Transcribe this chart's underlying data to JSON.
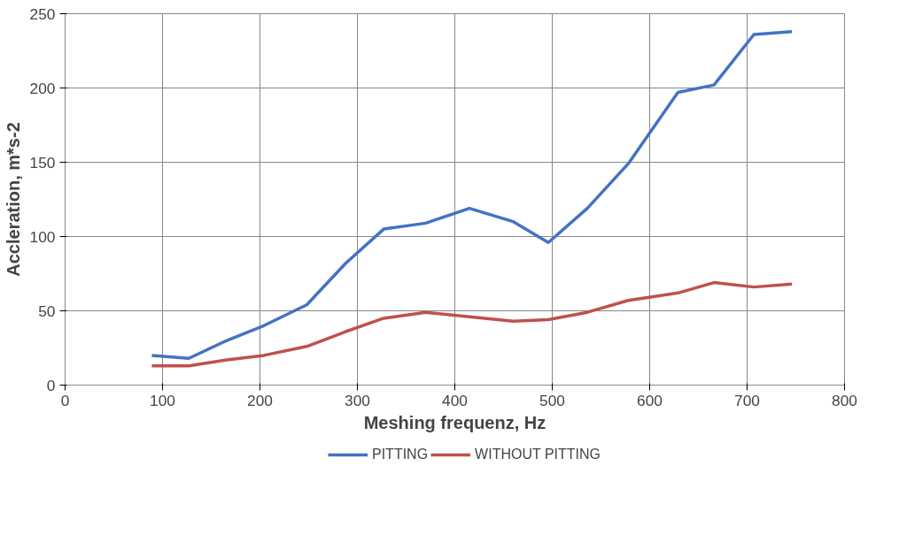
{
  "chart_data": {
    "type": "line",
    "xlabel": "Meshing frequenz, Hz",
    "ylabel": "Accleration, m*s-2",
    "x": [
      89,
      127,
      166,
      204,
      248,
      288,
      327,
      370,
      415,
      460,
      496,
      536,
      578,
      629,
      666,
      707,
      746
    ],
    "series": [
      {
        "name": "PITTING",
        "color": "#4472c4",
        "values": [
          20,
          18,
          30,
          40,
          54,
          82,
          105,
          109,
          119,
          110,
          96,
          119,
          149,
          197,
          202,
          236,
          238
        ]
      },
      {
        "name": "WITHOUT PITTING",
        "color": "#c0504d",
        "values": [
          13,
          13,
          17,
          20,
          26,
          36,
          45,
          49,
          46,
          43,
          44,
          49,
          57,
          62,
          69,
          66,
          68
        ]
      }
    ],
    "xlim": [
      0,
      800
    ],
    "xticks": [
      0,
      100,
      200,
      300,
      400,
      500,
      600,
      700,
      800
    ],
    "ylim": [
      0,
      250
    ],
    "yticks": [
      0,
      50,
      100,
      150,
      200,
      250
    ],
    "grid": true,
    "legend": "bottom",
    "marker": "none",
    "line_style": "solid"
  }
}
